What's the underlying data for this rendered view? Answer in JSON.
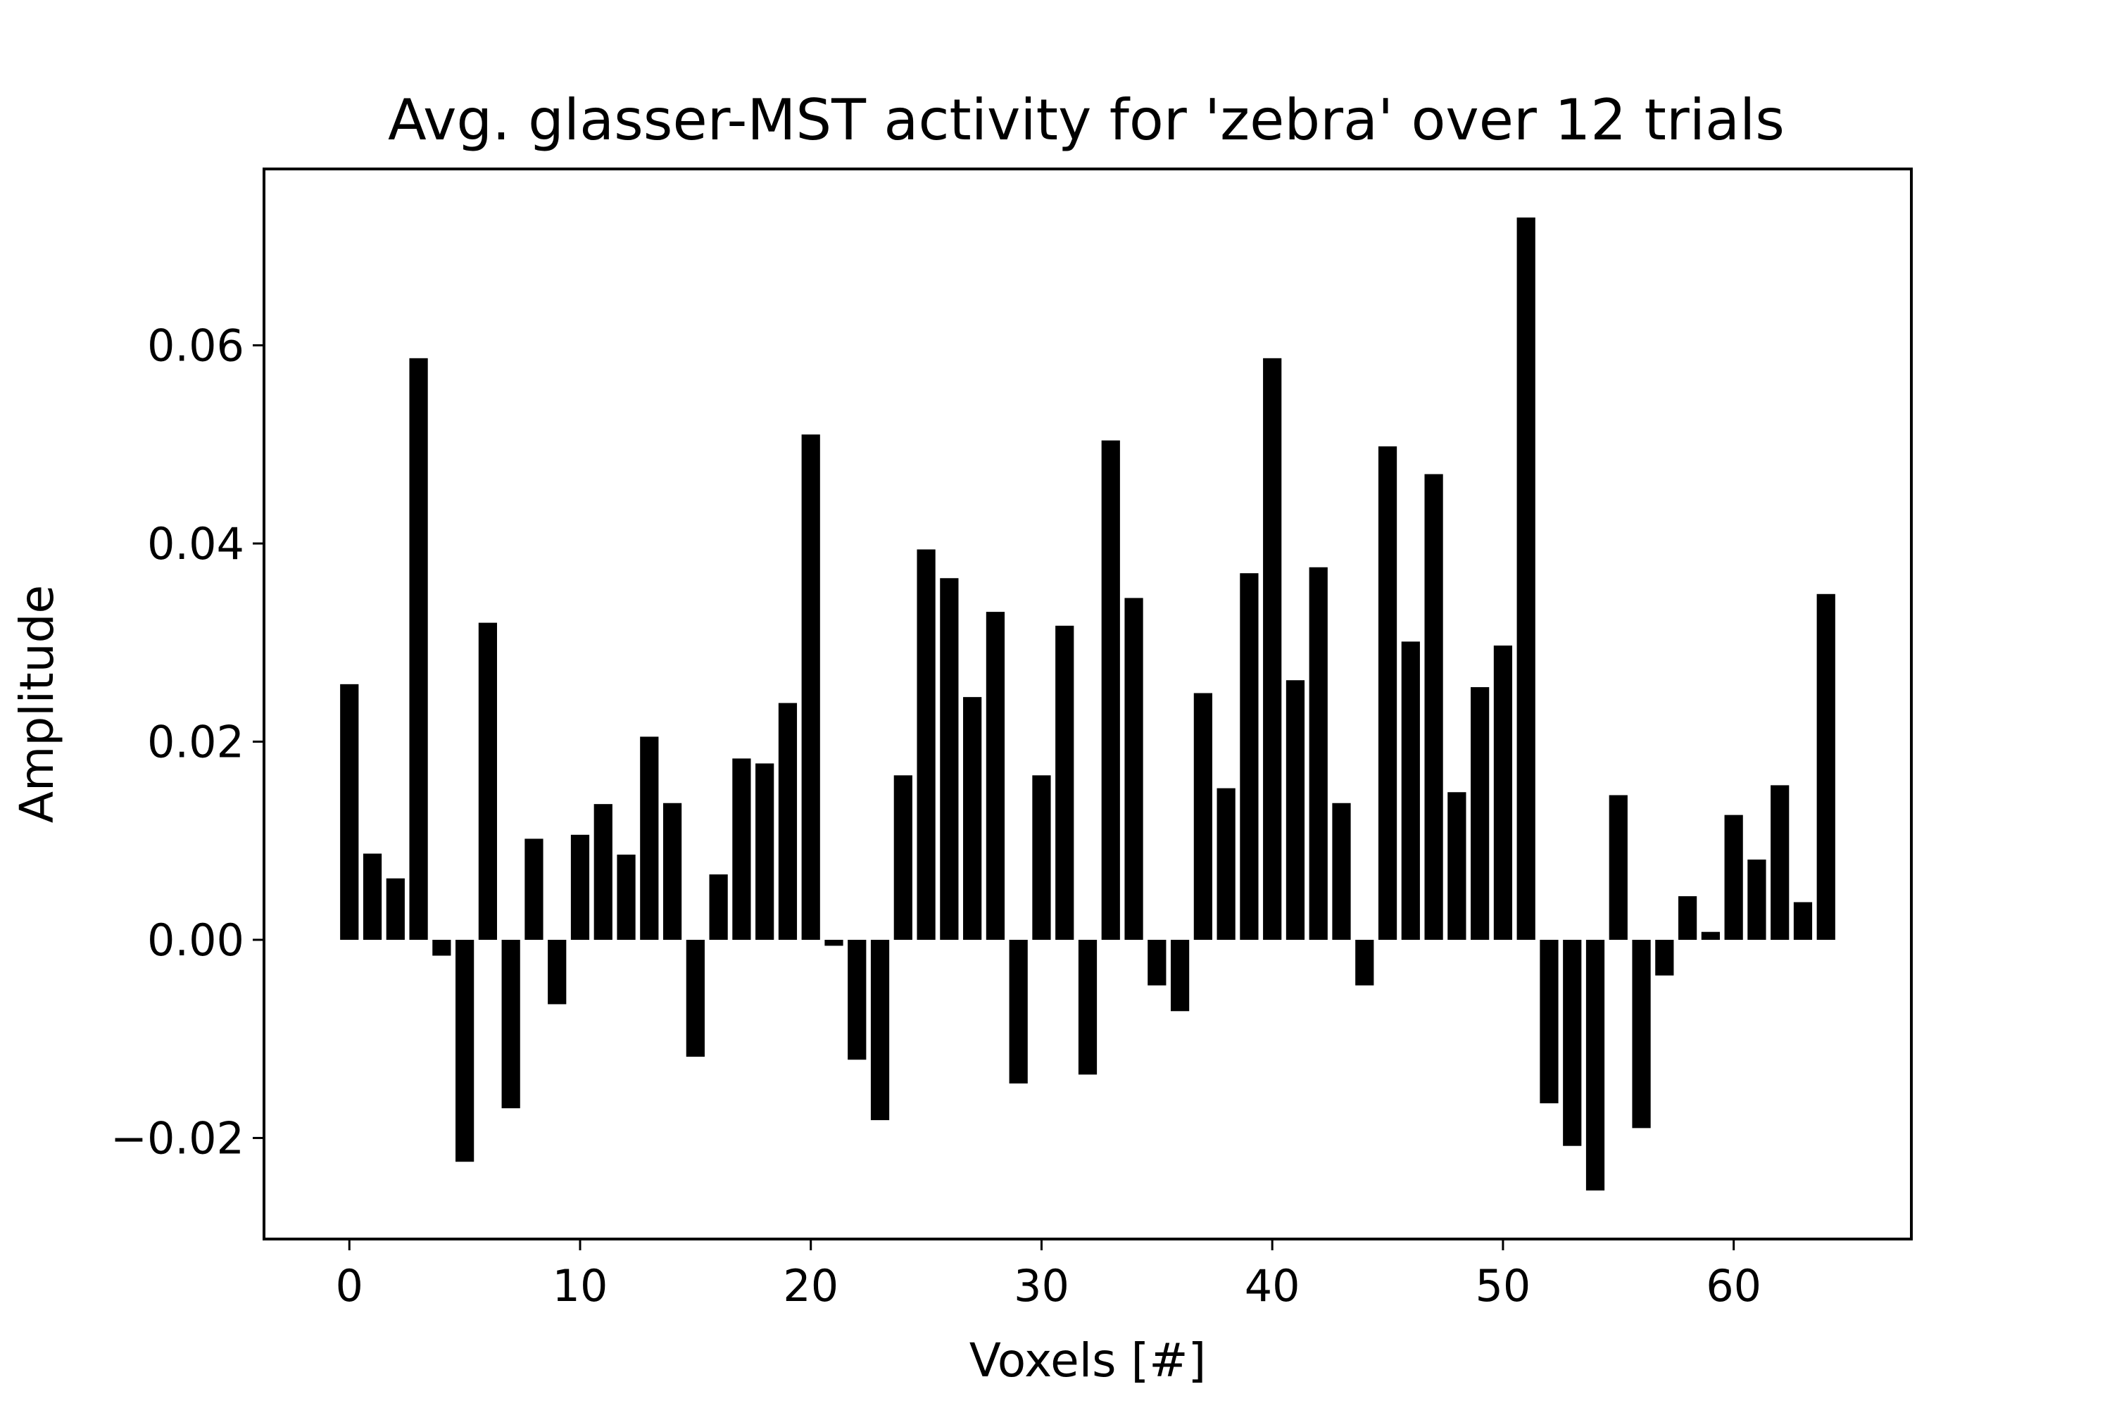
{
  "chart_data": {
    "type": "bar",
    "title": "Avg. glasser-MST activity for 'zebra' over 12 trials",
    "xlabel": "Voxels [#]",
    "ylabel": "Amplitude",
    "x": [
      0,
      1,
      2,
      3,
      4,
      5,
      6,
      7,
      8,
      9,
      10,
      11,
      12,
      13,
      14,
      15,
      16,
      17,
      18,
      19,
      20,
      21,
      22,
      23,
      24,
      25,
      26,
      27,
      28,
      29,
      30,
      31,
      32,
      33,
      34,
      35,
      36,
      37,
      38,
      39,
      40,
      41,
      42,
      43,
      44,
      45,
      46,
      47,
      48,
      49,
      50,
      51,
      52,
      53,
      54,
      55,
      56,
      57,
      58,
      59,
      60,
      61,
      62,
      63,
      64
    ],
    "values": [
      0.0258,
      0.0087,
      0.0062,
      0.0587,
      -0.0016,
      -0.0224,
      0.032,
      -0.017,
      0.0102,
      -0.0065,
      0.0106,
      0.0137,
      0.0086,
      0.0205,
      0.0138,
      -0.0118,
      0.0066,
      0.0183,
      0.0178,
      0.0239,
      0.051,
      -0.0006,
      -0.0121,
      -0.0182,
      0.0166,
      0.0394,
      0.0365,
      0.0245,
      0.0331,
      -0.0145,
      0.0166,
      0.0317,
      -0.0136,
      0.0504,
      0.0345,
      -0.0046,
      -0.0072,
      0.0249,
      0.0153,
      0.037,
      0.0587,
      0.0262,
      0.0376,
      0.0138,
      -0.0046,
      0.0498,
      0.0301,
      0.047,
      0.0149,
      0.0255,
      0.0297,
      0.0729,
      -0.0165,
      -0.0208,
      -0.0253,
      0.0146,
      -0.019,
      -0.0036,
      0.0044,
      0.0008,
      0.0126,
      0.0081,
      0.0156,
      0.0038,
      0.0349
    ],
    "xlim": [
      -3.7,
      67.7
    ],
    "ylim": [
      -0.0302,
      0.0778
    ],
    "xticks": [
      0,
      10,
      20,
      30,
      40,
      50,
      60
    ],
    "xtick_labels": [
      "0",
      "10",
      "20",
      "30",
      "40",
      "50",
      "60"
    ],
    "yticks": [
      -0.02,
      0.0,
      0.02,
      0.04,
      0.06
    ],
    "ytick_labels": [
      "−0.02",
      "0.00",
      "0.02",
      "0.04",
      "0.06"
    ],
    "bar_color": "#000000",
    "grid": false,
    "legend": "none"
  }
}
